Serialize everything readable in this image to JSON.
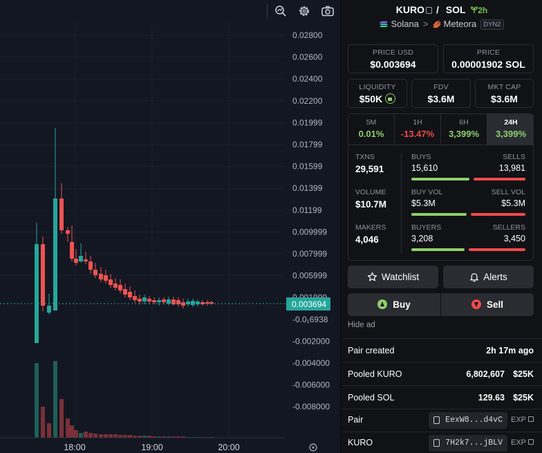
{
  "chart_pane": {
    "toolbar": {
      "icons": [
        "magnify-zoom-icon",
        "gear-icon",
        "camera-icon"
      ]
    },
    "price_axis": [
      "0.02800",
      "0.02600",
      "0.02400",
      "0.02200",
      "0.01999",
      "0.01799",
      "0.01599",
      "0.01399",
      "0.01199",
      "0.009999",
      "0.007999",
      "0.005999",
      "0.003694",
      "0.001999",
      "-0.0₁6938",
      "-0.002000",
      "-0.004000",
      "-0.006000",
      "-0.008000"
    ],
    "time_axis": [
      "18:00",
      "19:00",
      "20:00"
    ],
    "last_price_tag": "0.003694",
    "colors": {
      "up": "#26a69a",
      "down": "#ef5350",
      "up_volume": "#1e5f58",
      "down_volume": "#7a3038",
      "background": "#131722"
    }
  },
  "header": {
    "base": "KURO",
    "slash": "/",
    "quote": "SOL",
    "age": "2h",
    "chain": "Solana",
    "dex": "Meteora",
    "pool_type": "DYN2"
  },
  "metrics": {
    "price_usd": {
      "label": "PRICE USD",
      "value": "$0.003694"
    },
    "price_native": {
      "label": "PRICE",
      "value": "0.00001902 SOL"
    },
    "liquidity": {
      "label": "LIQUIDITY",
      "value": "$50K"
    },
    "fdv": {
      "label": "FDV",
      "value": "$3.6M"
    },
    "mkt_cap": {
      "label": "MKT CAP",
      "value": "$3.6M"
    }
  },
  "timeframes": [
    {
      "label": "5M",
      "value": "0.01%"
    },
    {
      "label": "1H",
      "value": "-13.47%"
    },
    {
      "label": "6H",
      "value": "3,399%"
    },
    {
      "label": "24H",
      "value": "3,399%"
    }
  ],
  "stats": {
    "txns": {
      "label": "TXNS",
      "value": "29,591"
    },
    "volume": {
      "label": "VOLUME",
      "value": "$10.7M"
    },
    "makers": {
      "label": "MAKERS",
      "value": "4,046"
    },
    "buys": {
      "label": "BUYS",
      "value": "15,610",
      "ratio": 0.527
    },
    "sells": {
      "label": "SELLS",
      "value": "13,981"
    },
    "buy_vol": {
      "label": "BUY VOL",
      "value": "$5.3M",
      "ratio": 0.5
    },
    "sell_vol": {
      "label": "SELL VOL",
      "value": "$5.3M"
    },
    "buyers": {
      "label": "BUYERS",
      "value": "3,208",
      "ratio": 0.482
    },
    "sellers": {
      "label": "SELLERS",
      "value": "3,450"
    }
  },
  "actions": {
    "watchlist": "Watchlist",
    "alerts": "Alerts",
    "buy": "Buy",
    "sell": "Sell",
    "hide_ad": "Hide ad"
  },
  "info": {
    "pair_created": {
      "label": "Pair created",
      "value": "2h 17m ago"
    },
    "pooled_base": {
      "label": "Pooled KURO",
      "amount": "6,802,607",
      "usd": "$25K"
    },
    "pooled_quote": {
      "label": "Pooled SOL",
      "amount": "129.63",
      "usd": "$25K"
    },
    "pair": {
      "label": "Pair",
      "address": "EexW8...d4vC",
      "exp": "EXP"
    },
    "token": {
      "label": "KURO",
      "address": "7H2k7...jBLV",
      "exp": "EXP"
    }
  }
}
